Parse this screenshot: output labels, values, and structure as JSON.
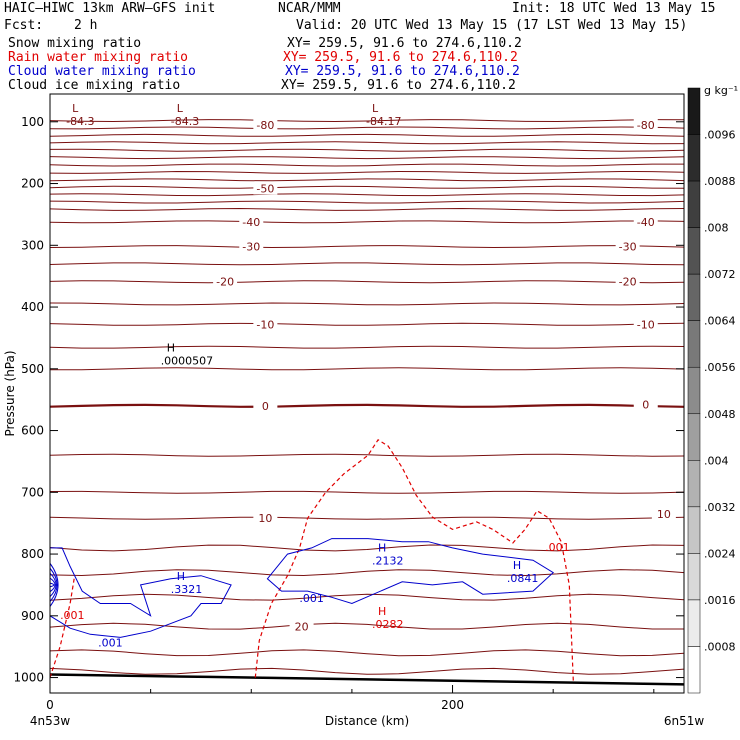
{
  "header": {
    "model_line": "HAIC–HIWC 13km ARW–GFS init",
    "org": "NCAR/MMM",
    "init": "Init: 18 UTC Wed 13 May 15",
    "fcst_label": "Fcst:",
    "fcst_value": "2 h",
    "valid": "Valid: 20 UTC Wed 13 May 15 (17 LST Wed 13 May 15)",
    "fields": [
      {
        "name": "Snow mixing ratio",
        "xy": "XY= 259.5, 91.6 to 274.6,110.2",
        "color": "#000000"
      },
      {
        "name": "Rain water mixing ratio",
        "xy": "XY= 259.5, 91.6 to 274.6,110.2",
        "color": "#e00000"
      },
      {
        "name": "Cloud water mixing ratio",
        "xy": "XY= 259.5, 91.6 to 274.6,110.2",
        "color": "#0000cc"
      },
      {
        "name": "Cloud ice mixing ratio",
        "xy": "XY= 259.5, 91.6 to 274.6,110.2",
        "color": "#000000"
      }
    ]
  },
  "chart_data": {
    "type": "cross-section contour",
    "xlabel": "Distance (km)",
    "ylabel": "Pressure (hPa)",
    "x_ticks": [
      0,
      200
    ],
    "y_ticks": [
      100,
      200,
      300,
      400,
      500,
      600,
      700,
      800,
      900,
      1000
    ],
    "xlim": [
      0,
      315
    ],
    "ylim": [
      1025,
      55
    ],
    "x_end_labels": {
      "left": "4n53w",
      "right": "6n51w"
    },
    "colorbar": {
      "unit": "g kg⁻¹",
      "labels": [
        ".0096",
        ".0088",
        ".008",
        ".0072",
        ".0064",
        ".0056",
        ".0048",
        ".004",
        ".0032",
        ".0024",
        ".0016",
        ".0008"
      ]
    },
    "temperature_contours": {
      "color": "#7a1010",
      "levels": [
        -80,
        -50,
        -40,
        -30,
        -20,
        -10,
        0,
        10,
        20
      ],
      "labels": [
        {
          "text": "-80",
          "x": 107,
          "p": 105
        },
        {
          "text": "-80",
          "x": 296,
          "p": 105
        },
        {
          "text": "-50",
          "x": 107,
          "p": 208
        },
        {
          "text": "-40",
          "x": 100,
          "p": 262
        },
        {
          "text": "-40",
          "x": 296,
          "p": 262
        },
        {
          "text": "-30",
          "x": 100,
          "p": 302
        },
        {
          "text": "-30",
          "x": 287,
          "p": 302
        },
        {
          "text": "-20",
          "x": 87,
          "p": 359
        },
        {
          "text": "-20",
          "x": 287,
          "p": 359
        },
        {
          "text": "-10",
          "x": 107,
          "p": 428
        },
        {
          "text": "-10",
          "x": 296,
          "p": 428
        },
        {
          "text": "0",
          "x": 107,
          "p": 560
        },
        {
          "text": "0",
          "x": 296,
          "p": 558
        },
        {
          "text": "10",
          "x": 107,
          "p": 742
        },
        {
          "text": "10",
          "x": 305,
          "p": 735
        },
        {
          "text": "20",
          "x": 125,
          "p": 917
        }
      ]
    },
    "extrema": [
      {
        "kind": "L",
        "value": "-84.3",
        "x": 8,
        "p": 100
      },
      {
        "kind": "L",
        "value": "-84.3",
        "x": 60,
        "p": 100
      },
      {
        "kind": "L",
        "value": "-84.17",
        "x": 157,
        "p": 100
      },
      {
        "kind": "H",
        "value": ".0000507",
        "x": 55,
        "p": 488
      },
      {
        "kind": "H",
        "value": ".3321",
        "x": 60,
        "p": 858
      },
      {
        "kind": "H",
        "value": ".2132",
        "x": 160,
        "p": 812
      },
      {
        "kind": "H",
        "value": ".0841",
        "x": 227,
        "p": 840
      },
      {
        "kind": "H",
        "value": ".0282",
        "x": 160,
        "p": 915
      }
    ],
    "rain_contour": {
      "color": "#e00000",
      "label": ".001",
      "points": [
        [
          102,
          1000
        ],
        [
          104,
          940
        ],
        [
          110,
          880
        ],
        [
          118,
          835
        ],
        [
          124,
          790
        ],
        [
          128,
          742
        ],
        [
          137,
          700
        ],
        [
          146,
          670
        ],
        [
          158,
          640
        ],
        [
          163,
          615
        ],
        [
          168,
          625
        ],
        [
          175,
          660
        ],
        [
          182,
          705
        ],
        [
          190,
          740
        ],
        [
          200,
          760
        ],
        [
          212,
          748
        ],
        [
          220,
          760
        ],
        [
          230,
          782
        ],
        [
          236,
          760
        ],
        [
          242,
          730
        ],
        [
          248,
          742
        ],
        [
          254,
          780
        ],
        [
          258,
          850
        ],
        [
          260,
          1005
        ]
      ]
    },
    "rain_left_label": {
      "text": ".001",
      "x": 5,
      "p": 905
    },
    "rain_right_label": {
      "text": ".001",
      "x": 246,
      "p": 795
    },
    "cloud_water_labels": [
      {
        "text": ".001",
        "x": 130,
        "p": 878
      },
      {
        "text": ".001",
        "x": 30,
        "p": 950
      }
    ]
  }
}
